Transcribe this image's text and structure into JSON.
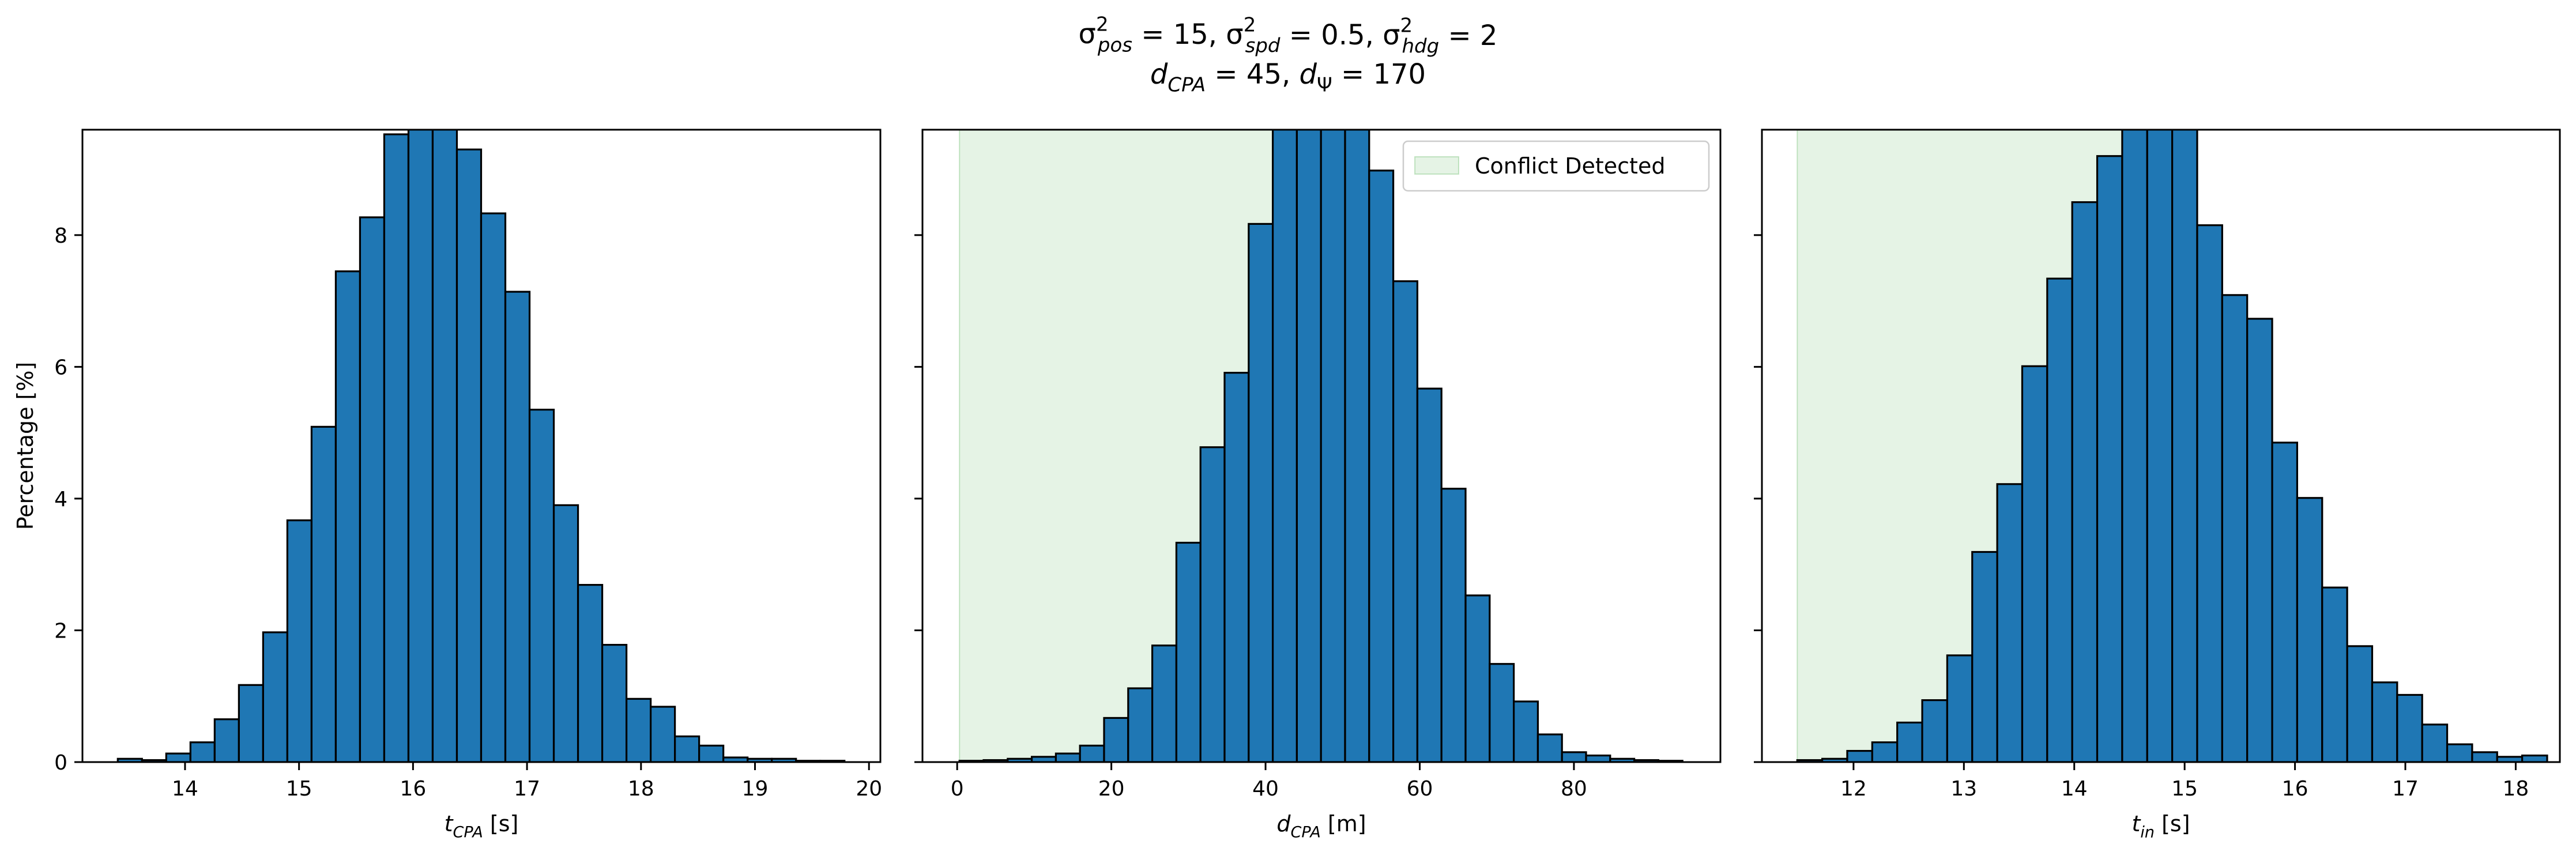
{
  "figure": {
    "title_line1": "σ²pos = 15, σ²spd = 0.5, σ²hdg = 2",
    "title_line2": "dCPA = 45, dΨ = 170",
    "title_parts": {
      "line1": [
        {
          "t": "σ",
          "s": "n"
        },
        {
          "t": "2",
          "s": "sup"
        },
        {
          "t": "pos",
          "s": "sub-i"
        },
        {
          "t": " = 15, ",
          "s": "n"
        },
        {
          "t": "σ",
          "s": "n"
        },
        {
          "t": "2",
          "s": "sup"
        },
        {
          "t": "spd",
          "s": "sub-i"
        },
        {
          "t": " = 0.5, ",
          "s": "n"
        },
        {
          "t": "σ",
          "s": "n"
        },
        {
          "t": "2",
          "s": "sup"
        },
        {
          "t": "hdg",
          "s": "sub-i"
        },
        {
          "t": " = 2",
          "s": "n"
        }
      ],
      "line2": [
        {
          "t": "d",
          "s": "i"
        },
        {
          "t": "CPA",
          "s": "sub-i"
        },
        {
          "t": " = 45, ",
          "s": "n"
        },
        {
          "t": "d",
          "s": "i"
        },
        {
          "t": "Ψ",
          "s": "sub"
        },
        {
          "t": " = 170",
          "s": "n"
        }
      ]
    }
  },
  "colors": {
    "bar_fill": "#1f77b4",
    "bar_edge": "#000000",
    "conflict_region": "#2ca02c",
    "axis": "#000000"
  },
  "chart_data": [
    {
      "type": "bar",
      "title": "",
      "xlabel": "tCPA [s]",
      "xlabel_parts": [
        {
          "t": "t",
          "s": "i"
        },
        {
          "t": "CPA",
          "s": "sub-i"
        },
        {
          "t": " [s]",
          "s": "n"
        }
      ],
      "ylabel": "Percentage [%]",
      "xlim": [
        13.1,
        20.1
      ],
      "ylim": [
        0,
        9.6
      ],
      "xticks": [
        14,
        15,
        16,
        17,
        18,
        19,
        20
      ],
      "yticks": [
        0,
        2,
        4,
        6,
        8
      ],
      "bin_start": 13.41,
      "bin_width": 0.2125,
      "values": [
        0.05,
        0.03,
        0.13,
        0.3,
        0.65,
        1.17,
        1.97,
        3.67,
        5.09,
        7.45,
        8.27,
        9.53,
        9.7,
        9.64,
        9.3,
        8.33,
        7.14,
        5.35,
        3.9,
        2.69,
        1.78,
        0.96,
        0.84,
        0.39,
        0.25,
        0.07,
        0.05,
        0.05,
        0.02,
        0.02
      ],
      "grid": false
    },
    {
      "type": "bar",
      "title": "",
      "xlabel": "dCPA [m]",
      "xlabel_parts": [
        {
          "t": "d",
          "s": "i"
        },
        {
          "t": "CPA",
          "s": "sub-i"
        },
        {
          "t": " [m]",
          "s": "n"
        }
      ],
      "ylabel": "",
      "xlim": [
        -4.5,
        99
      ],
      "ylim": [
        0,
        9.6
      ],
      "xticks": [
        0,
        20,
        40,
        60,
        80
      ],
      "yticks": [
        0,
        2,
        4,
        6,
        8
      ],
      "bin_start": 0.3,
      "bin_width": 3.126,
      "values": [
        0.02,
        0.03,
        0.05,
        0.08,
        0.13,
        0.25,
        0.67,
        1.12,
        1.77,
        3.33,
        4.78,
        5.91,
        8.17,
        9.7,
        9.8,
        9.75,
        9.7,
        8.98,
        7.3,
        5.67,
        4.15,
        2.53,
        1.49,
        0.92,
        0.42,
        0.15,
        0.1,
        0.05,
        0.03,
        0.02
      ],
      "shaded_region": {
        "x_start": 0.3,
        "x_end": 45
      },
      "legend": {
        "label": "Conflict Detected",
        "placement": "top-right"
      },
      "grid": false
    },
    {
      "type": "bar",
      "title": "",
      "xlabel": "tin [s]",
      "xlabel_parts": [
        {
          "t": "t",
          "s": "i"
        },
        {
          "t": "in",
          "s": "sub-i"
        },
        {
          "t": " [s]",
          "s": "n"
        }
      ],
      "ylabel": "",
      "xlim": [
        11.17,
        18.4
      ],
      "ylim": [
        0,
        9.6
      ],
      "xticks": [
        12,
        13,
        14,
        15,
        16,
        17,
        18
      ],
      "yticks": [
        0,
        2,
        4,
        6,
        8
      ],
      "bin_start": 11.49,
      "bin_width": 0.2265,
      "values": [
        0.03,
        0.05,
        0.17,
        0.3,
        0.6,
        0.94,
        1.62,
        3.19,
        4.22,
        6.01,
        7.34,
        8.5,
        9.2,
        9.63,
        9.7,
        9.65,
        8.15,
        7.09,
        6.73,
        4.85,
        4.01,
        2.65,
        1.76,
        1.21,
        1.02,
        0.57,
        0.27,
        0.15,
        0.08,
        0.1
      ],
      "shaded_region": {
        "x_start": 11.49,
        "x_end": 14.99
      },
      "grid": false
    }
  ]
}
